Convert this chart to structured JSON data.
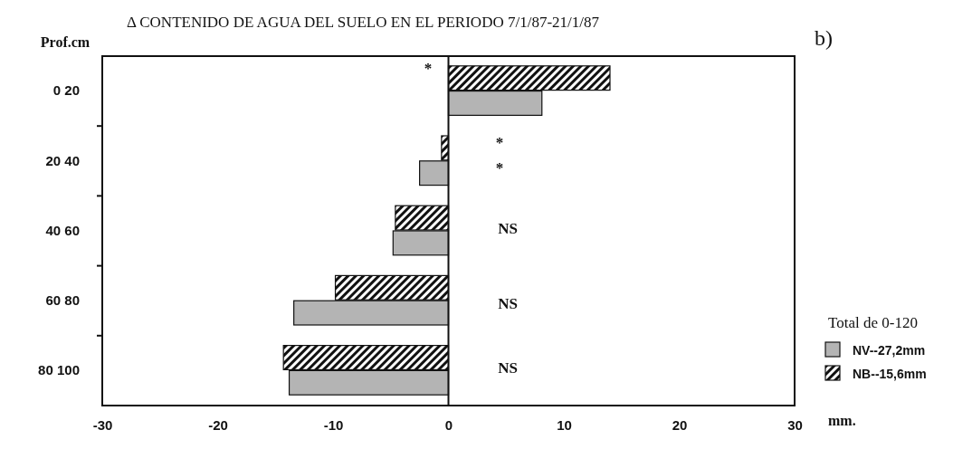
{
  "chart_data": {
    "type": "bar",
    "orientation": "horizontal",
    "title": "Δ CONTENIDO DE AGUA DEL SUELO EN EL PERIODO 7/1/87-21/1/87",
    "xlabel": "mm.",
    "ylabel": "Prof.cm",
    "legend_title": "Total de 0-120",
    "legend": "right",
    "categories": [
      "0 20",
      "20 40",
      "40 60",
      "60 80",
      "80 100"
    ],
    "series": [
      {
        "name": "NB--15,6mm",
        "color": "#111111",
        "values": [
          14.0,
          -0.6,
          -4.6,
          -9.8,
          -14.3
        ]
      },
      {
        "name": "NV--27,2mm",
        "color": "#b4b4b4",
        "values": [
          8.1,
          -2.5,
          -4.8,
          -13.4,
          -13.8
        ]
      }
    ],
    "xlim": [
      -30,
      30
    ],
    "xticks": [
      -30,
      -20,
      -10,
      0,
      10,
      20,
      30
    ],
    "annotations": [
      "b)",
      "*",
      "*",
      "*",
      "NS",
      "NS",
      "NS"
    ]
  }
}
